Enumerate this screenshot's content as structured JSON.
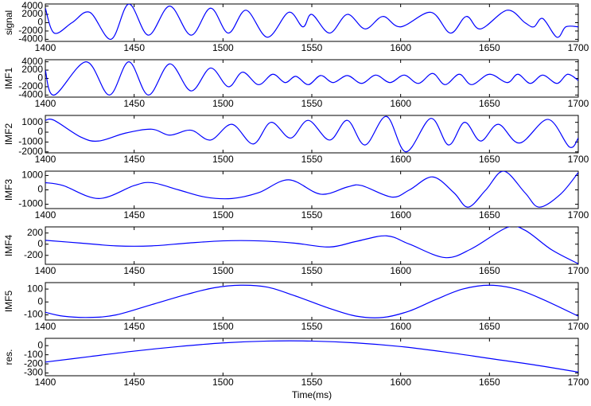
{
  "chart_data": [
    {
      "type": "line",
      "ylabel": "signal",
      "color": "#0000ff",
      "x": [
        1400,
        1405,
        1415,
        1425,
        1437,
        1447,
        1458,
        1470,
        1482,
        1493,
        1503,
        1513,
        1525,
        1537,
        1545,
        1550,
        1560,
        1570,
        1580,
        1590,
        1600,
        1617,
        1628,
        1637,
        1645,
        1660,
        1670,
        1675,
        1680,
        1688,
        1693,
        1700
      ],
      "values": [
        3500,
        -2500,
        0,
        2500,
        -4000,
        4500,
        -3000,
        4000,
        -3000,
        3500,
        -2500,
        3000,
        -3500,
        2500,
        -1000,
        2000,
        -2500,
        2000,
        -1500,
        1500,
        -1000,
        2500,
        -2500,
        1500,
        -1500,
        3000,
        0,
        -1000,
        1000,
        -3500,
        -1000,
        -1000
      ],
      "xlim": [
        1400,
        1700
      ],
      "xticks": [
        1400,
        1450,
        1500,
        1550,
        1600,
        1650,
        1700
      ],
      "ylim": [
        -4500,
        4500
      ],
      "yticks": [
        4000,
        2000,
        0,
        -2000,
        -4000
      ]
    },
    {
      "type": "line",
      "ylabel": "IMF1",
      "color": "#0000ff",
      "x": [
        1400,
        1405,
        1423,
        1436,
        1447,
        1458,
        1470,
        1482,
        1493,
        1503,
        1511,
        1520,
        1528,
        1535,
        1541,
        1548,
        1555,
        1562,
        1570,
        1578,
        1586,
        1594,
        1602,
        1610,
        1618,
        1625,
        1633,
        1640,
        1650,
        1660,
        1666,
        1673,
        1680,
        1688,
        1694,
        1700
      ],
      "values": [
        2000,
        -4000,
        4000,
        -4000,
        4000,
        -4000,
        3500,
        -3000,
        2500,
        -2000,
        1500,
        -1500,
        1000,
        -1000,
        500,
        -1500,
        700,
        -1000,
        700,
        -1200,
        800,
        -1000,
        800,
        -1200,
        1200,
        -1500,
        1000,
        -1500,
        1000,
        -1000,
        1000,
        -1200,
        800,
        -1200,
        1000,
        -500
      ],
      "xlim": [
        1400,
        1700
      ],
      "xticks": [
        1400,
        1450,
        1500,
        1550,
        1600,
        1650,
        1700
      ],
      "ylim": [
        -4500,
        4500
      ],
      "yticks": [
        4000,
        2000,
        0,
        -2000,
        -4000
      ]
    },
    {
      "type": "line",
      "ylabel": "IMF2",
      "color": "#0000ff",
      "x": [
        1400,
        1405,
        1420,
        1430,
        1445,
        1460,
        1470,
        1482,
        1493,
        1505,
        1517,
        1527,
        1538,
        1548,
        1560,
        1570,
        1580,
        1592,
        1603,
        1617,
        1627,
        1636,
        1645,
        1655,
        1667,
        1683,
        1695,
        1700
      ],
      "values": [
        1200,
        1200,
        -500,
        -900,
        -100,
        300,
        -300,
        200,
        -800,
        800,
        -1200,
        1000,
        -600,
        1200,
        -800,
        1200,
        -1300,
        1600,
        -2000,
        1400,
        -1300,
        1000,
        -900,
        800,
        -1100,
        1300,
        -1500,
        -600
      ],
      "xlim": [
        1400,
        1700
      ],
      "xticks": [
        1400,
        1450,
        1500,
        1550,
        1600,
        1650,
        1700
      ],
      "ylim": [
        -2100,
        1700
      ],
      "yticks": [
        1000,
        0,
        -1000,
        -2000
      ]
    },
    {
      "type": "line",
      "ylabel": "IMF3",
      "color": "#0000ff",
      "x": [
        1400,
        1410,
        1430,
        1450,
        1460,
        1475,
        1490,
        1505,
        1520,
        1537,
        1555,
        1570,
        1578,
        1595,
        1605,
        1618,
        1630,
        1638,
        1648,
        1658,
        1670,
        1678,
        1690,
        1700
      ],
      "values": [
        500,
        300,
        -600,
        300,
        500,
        0,
        -500,
        -600,
        -200,
        700,
        -300,
        200,
        300,
        -500,
        0,
        900,
        -200,
        -1200,
        0,
        1300,
        -200,
        -1200,
        -300,
        1200
      ],
      "xlim": [
        1400,
        1700
      ],
      "xticks": [
        1400,
        1450,
        1500,
        1550,
        1600,
        1650,
        1700
      ],
      "ylim": [
        -1300,
        1300
      ],
      "yticks": [
        1000,
        0,
        -1000
      ]
    },
    {
      "type": "line",
      "ylabel": "IMF4",
      "color": "#0000ff",
      "x": [
        1400,
        1420,
        1440,
        1460,
        1480,
        1500,
        1520,
        1540,
        1560,
        1575,
        1592,
        1605,
        1625,
        1640,
        1660,
        1670,
        1685,
        1700
      ],
      "values": [
        70,
        20,
        -30,
        -30,
        20,
        60,
        60,
        20,
        -50,
        50,
        150,
        0,
        -240,
        -80,
        300,
        250,
        -100,
        -350
      ],
      "xlim": [
        1400,
        1700
      ],
      "xticks": [
        1400,
        1450,
        1500,
        1550,
        1600,
        1650,
        1700
      ],
      "ylim": [
        -360,
        310
      ],
      "yticks": [
        200,
        0,
        -200
      ]
    },
    {
      "type": "line",
      "ylabel": "IMF5",
      "color": "#0000ff",
      "x": [
        1400,
        1410,
        1425,
        1440,
        1460,
        1480,
        1495,
        1510,
        1525,
        1540,
        1560,
        1575,
        1590,
        1605,
        1620,
        1635,
        1650,
        1665,
        1680,
        1700
      ],
      "values": [
        -80,
        -110,
        -120,
        -100,
        -20,
        60,
        110,
        130,
        115,
        50,
        -50,
        -110,
        -120,
        -70,
        20,
        100,
        130,
        100,
        20,
        -110
      ],
      "xlim": [
        1400,
        1700
      ],
      "xticks": [
        1400,
        1450,
        1500,
        1550,
        1600,
        1650,
        1700
      ],
      "ylim": [
        -140,
        150
      ],
      "yticks": [
        100,
        0,
        -100
      ]
    },
    {
      "type": "line",
      "ylabel": "res.",
      "xlabel": "Time(ms)",
      "color": "#0000ff",
      "x": [
        1400,
        1425,
        1450,
        1475,
        1500,
        1525,
        1550,
        1575,
        1600,
        1625,
        1650,
        1675,
        1700
      ],
      "values": [
        -180,
        -120,
        -60,
        -10,
        30,
        50,
        50,
        30,
        -10,
        -70,
        -140,
        -210,
        -290
      ],
      "xlim": [
        1400,
        1700
      ],
      "xticks": [
        1400,
        1450,
        1500,
        1550,
        1600,
        1650,
        1700
      ],
      "ylim": [
        -330,
        80
      ],
      "yticks": [
        0,
        -100,
        -200,
        -300
      ]
    }
  ]
}
